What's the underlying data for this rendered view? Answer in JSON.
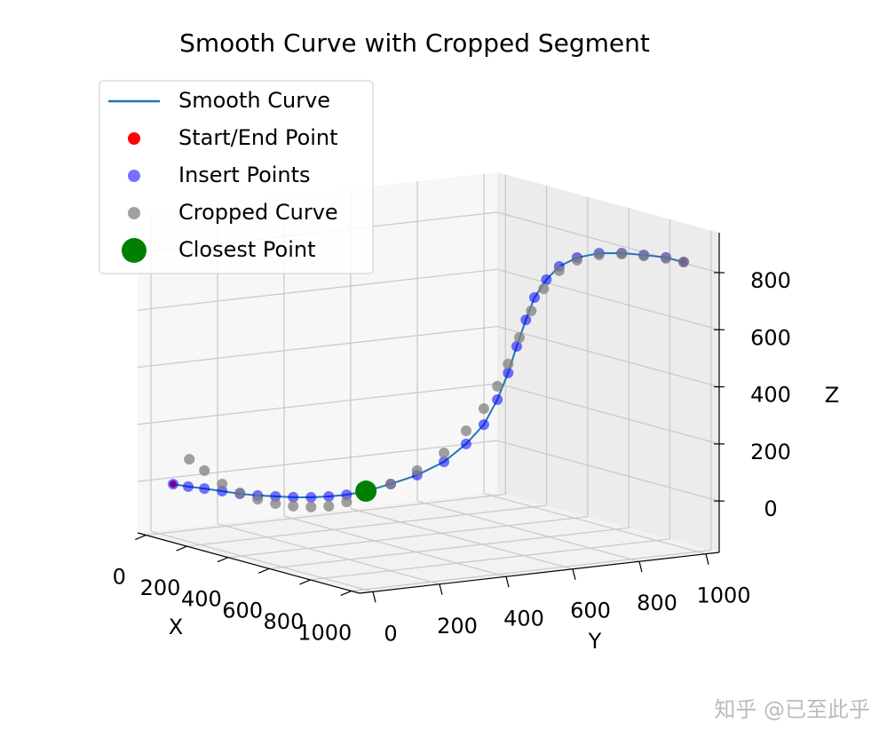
{
  "chart_data": {
    "type": "scatter3d",
    "title": "Smooth Curve with Cropped Segment",
    "xlabel": "X",
    "ylabel": "Y",
    "zlabel": "Z",
    "xlim": [
      -40,
      1040
    ],
    "ylim": [
      -40,
      1040
    ],
    "zlim": [
      -180,
      940
    ],
    "xticks": [
      0,
      200,
      400,
      600,
      800,
      1000
    ],
    "yticks": [
      0,
      200,
      400,
      600,
      800,
      1000
    ],
    "zticks": [
      0,
      200,
      400,
      600,
      800
    ],
    "grid": true,
    "legend": "upper left",
    "series": [
      {
        "name": "Smooth Curve",
        "kind": "line",
        "color": "#1f77b4",
        "x": [
          26,
          54,
          84,
          117,
          150,
          183,
          216,
          249,
          282,
          315,
          348,
          384,
          430,
          479,
          529,
          570,
          603,
          628,
          648,
          664,
          681,
          697,
          719,
          743,
          776,
          817,
          859,
          900,
          941,
          974
        ],
        "y": [
          26,
          54,
          84,
          117,
          150,
          183,
          216,
          249,
          282,
          315,
          348,
          384,
          430,
          479,
          529,
          570,
          603,
          628,
          648,
          664,
          681,
          697,
          719,
          743,
          776,
          817,
          859,
          900,
          941,
          974
        ],
        "z": [
          -5,
          -12,
          -17,
          -24,
          -31,
          -35,
          -36,
          -37,
          -35,
          -30,
          -22,
          -7,
          21,
          55,
          105,
          170,
          240,
          329,
          424,
          518,
          612,
          691,
          755,
          803,
          836,
          854,
          857,
          853,
          847,
          833
        ]
      },
      {
        "name": "Start/End Point",
        "kind": "scatter",
        "color": "red",
        "x": [
          26,
          974
        ],
        "y": [
          26,
          974
        ],
        "z": [
          -5,
          833
        ]
      },
      {
        "name": "Insert Points",
        "kind": "scatter",
        "color": "blue",
        "x": [
          26,
          54,
          84,
          117,
          150,
          183,
          216,
          249,
          282,
          315,
          348,
          384,
          430,
          479,
          529,
          570,
          603,
          628,
          648,
          664,
          681,
          697,
          719,
          743,
          776,
          817,
          859,
          900,
          941,
          974
        ],
        "y": [
          26,
          54,
          84,
          117,
          150,
          183,
          216,
          249,
          282,
          315,
          348,
          384,
          430,
          479,
          529,
          570,
          603,
          628,
          648,
          664,
          681,
          697,
          719,
          743,
          776,
          817,
          859,
          900,
          941,
          974
        ],
        "z": [
          -5,
          -12,
          -17,
          -24,
          -31,
          -35,
          -36,
          -37,
          -35,
          -30,
          -22,
          -7,
          21,
          55,
          105,
          170,
          240,
          329,
          424,
          518,
          612,
          691,
          755,
          803,
          836,
          854,
          857,
          853,
          847,
          833
        ]
      },
      {
        "name": "Cropped Curve",
        "kind": "scatter",
        "color": "gray",
        "x": [
          56,
          84,
          117,
          150,
          183,
          216,
          249,
          282,
          315,
          348,
          384,
          430,
          479,
          529,
          570,
          603,
          628,
          648,
          669,
          691,
          714,
          743,
          776,
          817,
          859,
          900,
          941,
          974
        ],
        "y": [
          56,
          84,
          117,
          150,
          183,
          216,
          249,
          282,
          315,
          348,
          384,
          430,
          479,
          529,
          570,
          603,
          628,
          648,
          669,
          691,
          714,
          743,
          776,
          817,
          859,
          900,
          941,
          974
        ],
        "z": [
          84,
          46,
          1,
          -28,
          -48,
          -61,
          -68,
          -69,
          -64,
          -47,
          -16,
          21,
          71,
          136,
          216,
          296,
          376,
          455,
          549,
          644,
          723,
          788,
          827,
          848,
          854,
          850,
          844,
          833
        ]
      },
      {
        "name": "Closest Point",
        "kind": "scatter",
        "color": "green",
        "x": [
          384
        ],
        "y": [
          384
        ],
        "z": [
          -7
        ]
      }
    ]
  },
  "watermark": "知乎 @已至此乎"
}
